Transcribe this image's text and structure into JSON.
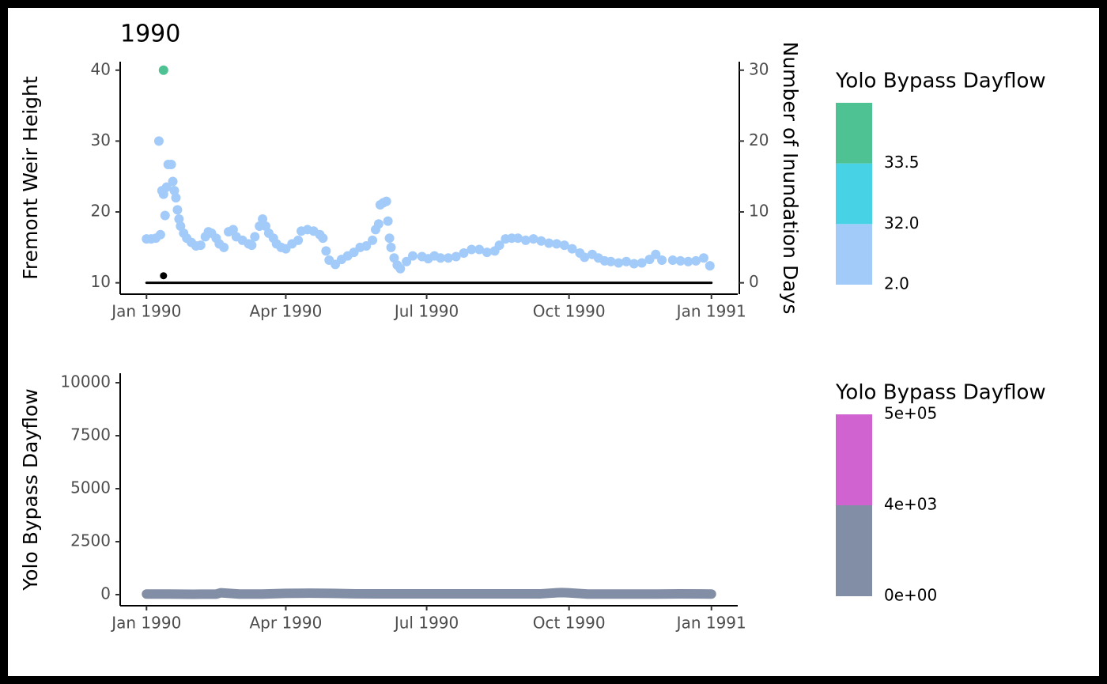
{
  "chart_data": [
    {
      "type": "scatter",
      "title": "1990",
      "ylabel": "Fremont Weir Height",
      "y2label": "Number of Inundation Days",
      "xlim": [
        -17,
        382
      ],
      "xticks": [
        {
          "value": 0,
          "label": "Jan 1990"
        },
        {
          "value": 90,
          "label": "Apr 1990"
        },
        {
          "value": 181,
          "label": "Jul 1990"
        },
        {
          "value": 273,
          "label": "Oct 1990"
        },
        {
          "value": 365,
          "label": "Jan 1991"
        }
      ],
      "ylim": [
        8.4,
        41.2
      ],
      "yticks": [
        10,
        20,
        30,
        40
      ],
      "y2lim": [
        -1.6,
        31.2
      ],
      "y2ticks": [
        0,
        10,
        20,
        30
      ],
      "series": [
        {
          "color": "#a3cbf9",
          "style": "points",
          "axis": "y",
          "x": [
            0,
            3,
            6,
            8,
            9,
            10,
            11,
            12,
            13,
            14,
            16,
            17,
            18,
            19,
            20,
            21,
            22,
            24,
            26,
            29,
            32,
            35,
            38,
            40,
            42,
            45,
            47,
            50,
            53,
            56,
            58,
            62,
            66,
            68,
            70,
            73,
            75,
            77,
            79,
            82,
            84,
            87,
            90,
            94,
            98,
            100,
            104,
            108,
            112,
            114,
            116,
            118,
            122,
            126,
            130,
            134,
            138,
            142,
            146,
            148,
            150,
            151,
            153,
            155,
            156,
            157,
            158,
            160,
            162,
            164,
            168,
            172,
            178,
            182,
            186,
            190,
            195,
            200,
            205,
            210,
            215,
            220,
            225,
            228,
            232,
            236,
            240,
            245,
            250,
            255,
            260,
            265,
            270,
            275,
            280,
            283,
            288,
            292,
            296,
            300,
            305,
            310,
            315,
            320,
            325,
            329,
            333,
            340,
            345,
            350,
            355,
            360,
            364
          ],
          "values": [
            16.2,
            16.2,
            16.3,
            30,
            16.8,
            23,
            22.5,
            19.5,
            23.5,
            26.7,
            26.7,
            24.3,
            23,
            22,
            20.3,
            19,
            18,
            17,
            16.3,
            15.7,
            15.2,
            15.3,
            16.5,
            17.2,
            17,
            16.3,
            15.5,
            15,
            17.2,
            17.5,
            16.5,
            16,
            15.5,
            15.3,
            16.5,
            18,
            19,
            18,
            17,
            16.3,
            15.5,
            15,
            14.8,
            15.5,
            16,
            17.3,
            17.5,
            17.3,
            16.8,
            16.3,
            14.5,
            13.2,
            12.6,
            13.3,
            13.8,
            14.3,
            15,
            15.2,
            16,
            17.5,
            18.3,
            21,
            21.3,
            21.5,
            18.7,
            16.3,
            15,
            13.5,
            12.5,
            12,
            13,
            13.8,
            13.7,
            13.4,
            13.8,
            13.5,
            13.5,
            13.7,
            14.2,
            14.7,
            14.7,
            14.3,
            14.5,
            15.3,
            16.2,
            16.3,
            16.3,
            16,
            16.2,
            15.9,
            15.6,
            15.5,
            15.3,
            14.8,
            14.2,
            13.6,
            14,
            13.5,
            13.1,
            13,
            12.8,
            13,
            12.7,
            12.8,
            13.3,
            14,
            13.2,
            13.2,
            13.1,
            13,
            13.1,
            13.5,
            12.4
          ]
        },
        {
          "color": "#4fc293",
          "style": "points",
          "axis": "y",
          "x": [
            11
          ],
          "values": [
            40
          ]
        },
        {
          "color": "#000000",
          "style": "line",
          "axis": "y2",
          "x": [
            0,
            365
          ],
          "values": [
            0,
            0
          ]
        },
        {
          "color": "#000000",
          "style": "points",
          "axis": "y2",
          "x": [
            11
          ],
          "values": [
            1
          ]
        }
      ],
      "legend": {
        "title": "Yolo Bypass Dayflow",
        "colors": [
          "#a3cbf9",
          "#47d2e6",
          "#4fc293"
        ],
        "labels": [
          {
            "value": 2,
            "label": "2.0"
          },
          {
            "value": 32,
            "label": "32.0"
          },
          {
            "value": 33.5,
            "label": "33.5"
          }
        ]
      }
    },
    {
      "type": "scatter",
      "ylabel": "Yolo Bypass Dayflow",
      "xlim": [
        -17,
        382
      ],
      "xticks": [
        {
          "value": 0,
          "label": "Jan 1990"
        },
        {
          "value": 90,
          "label": "Apr 1990"
        },
        {
          "value": 181,
          "label": "Jul 1990"
        },
        {
          "value": 273,
          "label": "Oct 1990"
        },
        {
          "value": 365,
          "label": "Jan 1991"
        }
      ],
      "ylim": [
        -522,
        10448
      ],
      "yticks": [
        0,
        2500,
        5000,
        7500,
        10000
      ],
      "series": [
        {
          "color": "#828ea5",
          "style": "band",
          "axis": "y",
          "x": [
            0,
            15,
            30,
            45,
            48,
            60,
            75,
            90,
            105,
            120,
            135,
            150,
            165,
            180,
            195,
            210,
            225,
            240,
            255,
            265,
            268,
            272,
            285,
            300,
            315,
            330,
            345,
            365
          ],
          "values": [
            30,
            30,
            20,
            25,
            90,
            30,
            30,
            60,
            70,
            60,
            40,
            40,
            40,
            40,
            40,
            40,
            40,
            40,
            40,
            90,
            100,
            90,
            30,
            30,
            30,
            30,
            40,
            30
          ]
        }
      ],
      "legend": {
        "title": "Yolo Bypass Dayflow",
        "colors": [
          "#828ea5",
          "#d063d0"
        ],
        "labels": [
          {
            "value": 0,
            "label": "0e+00"
          },
          {
            "value": 4000,
            "label": "4e+03"
          },
          {
            "value": 500000,
            "label": "5e+05"
          }
        ]
      }
    }
  ]
}
